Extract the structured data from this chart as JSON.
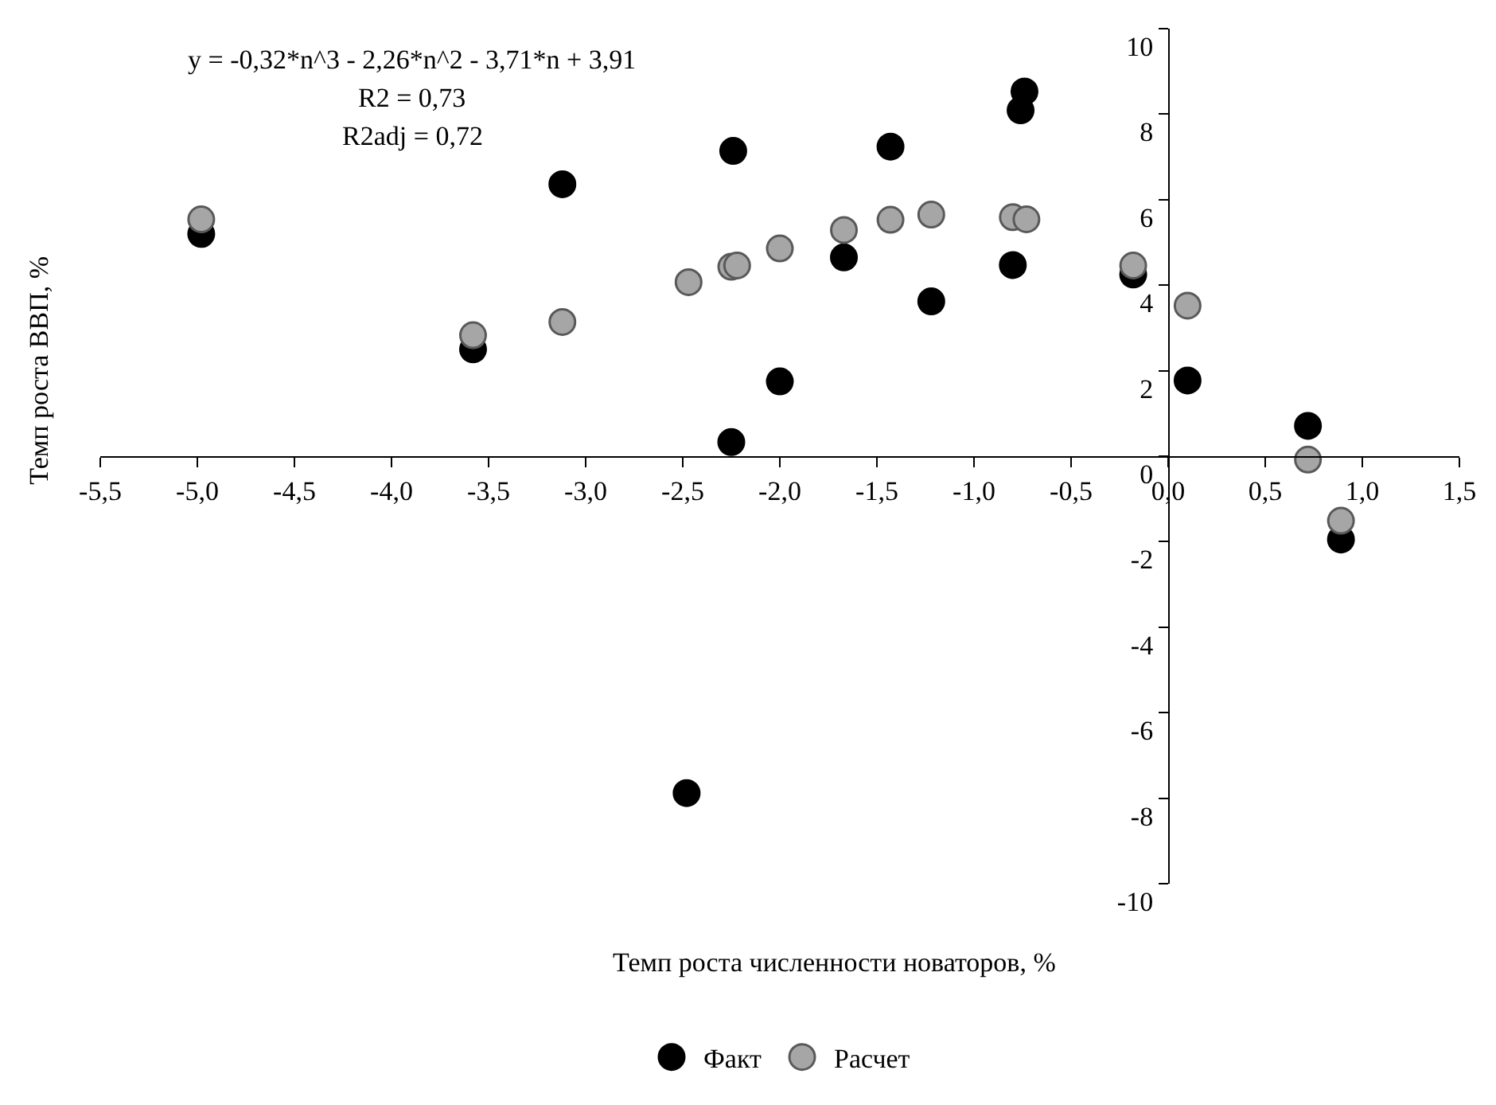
{
  "chart_data": {
    "type": "scatter",
    "xlabel": "Темп роста численности новаторов, %",
    "ylabel": "Темп роста ВВП, %",
    "annotations": [
      "y = -0,32*n^3 - 2,26*n^2 - 3,71*n + 3,91",
      "R2 = 0,73",
      "R2adj = 0,72"
    ],
    "xlim": [
      -5.5,
      1.5
    ],
    "xticks": [
      {
        "value": -5.5,
        "label": "-5,5"
      },
      {
        "value": -5.0,
        "label": "-5,0"
      },
      {
        "value": -4.5,
        "label": "-4,5"
      },
      {
        "value": -4.0,
        "label": "-4,0"
      },
      {
        "value": -3.5,
        "label": "-3,5"
      },
      {
        "value": -3.0,
        "label": "-3,0"
      },
      {
        "value": -2.5,
        "label": "-2,5"
      },
      {
        "value": -2.0,
        "label": "-2,0"
      },
      {
        "value": -1.5,
        "label": "-1,5"
      },
      {
        "value": -1.0,
        "label": "-1,0"
      },
      {
        "value": -0.5,
        "label": "-0,5"
      },
      {
        "value": 0.0,
        "label": "0,0"
      },
      {
        "value": 0.5,
        "label": "0,5"
      },
      {
        "value": 1.0,
        "label": "1,0"
      },
      {
        "value": 1.5,
        "label": "1,5"
      }
    ],
    "ylim": [
      -10,
      10
    ],
    "yticks": [
      -10,
      -8,
      -6,
      -4,
      -2,
      0,
      2,
      4,
      6,
      8,
      10
    ],
    "legend": "bottom",
    "marker": "circle",
    "series": [
      {
        "name": "Факт",
        "color": "#000000",
        "x": [
          -4.98,
          -3.58,
          -3.12,
          -2.24,
          -2.25,
          -2.48,
          -2.0,
          -1.67,
          -1.43,
          -1.22,
          -0.8,
          -0.76,
          -0.74,
          -0.18,
          0.1,
          0.72,
          0.89
        ],
        "values": [
          5.2,
          2.5,
          6.36,
          7.14,
          0.33,
          -7.88,
          1.75,
          4.65,
          7.24,
          3.62,
          4.47,
          8.09,
          8.53,
          4.25,
          1.77,
          0.71,
          -1.95
        ]
      },
      {
        "name": "Расчет",
        "color": "#a6a6a6",
        "x": [
          -4.98,
          -3.58,
          -3.12,
          -2.47,
          -2.25,
          -2.22,
          -2.0,
          -1.67,
          -1.43,
          -1.22,
          -0.8,
          -0.73,
          -0.18,
          0.1,
          0.72,
          0.89
        ],
        "values": [
          5.54,
          2.83,
          3.14,
          4.07,
          4.43,
          4.46,
          4.86,
          5.29,
          5.53,
          5.65,
          5.59,
          5.54,
          4.46,
          3.52,
          -0.08,
          -1.51
        ]
      }
    ]
  }
}
